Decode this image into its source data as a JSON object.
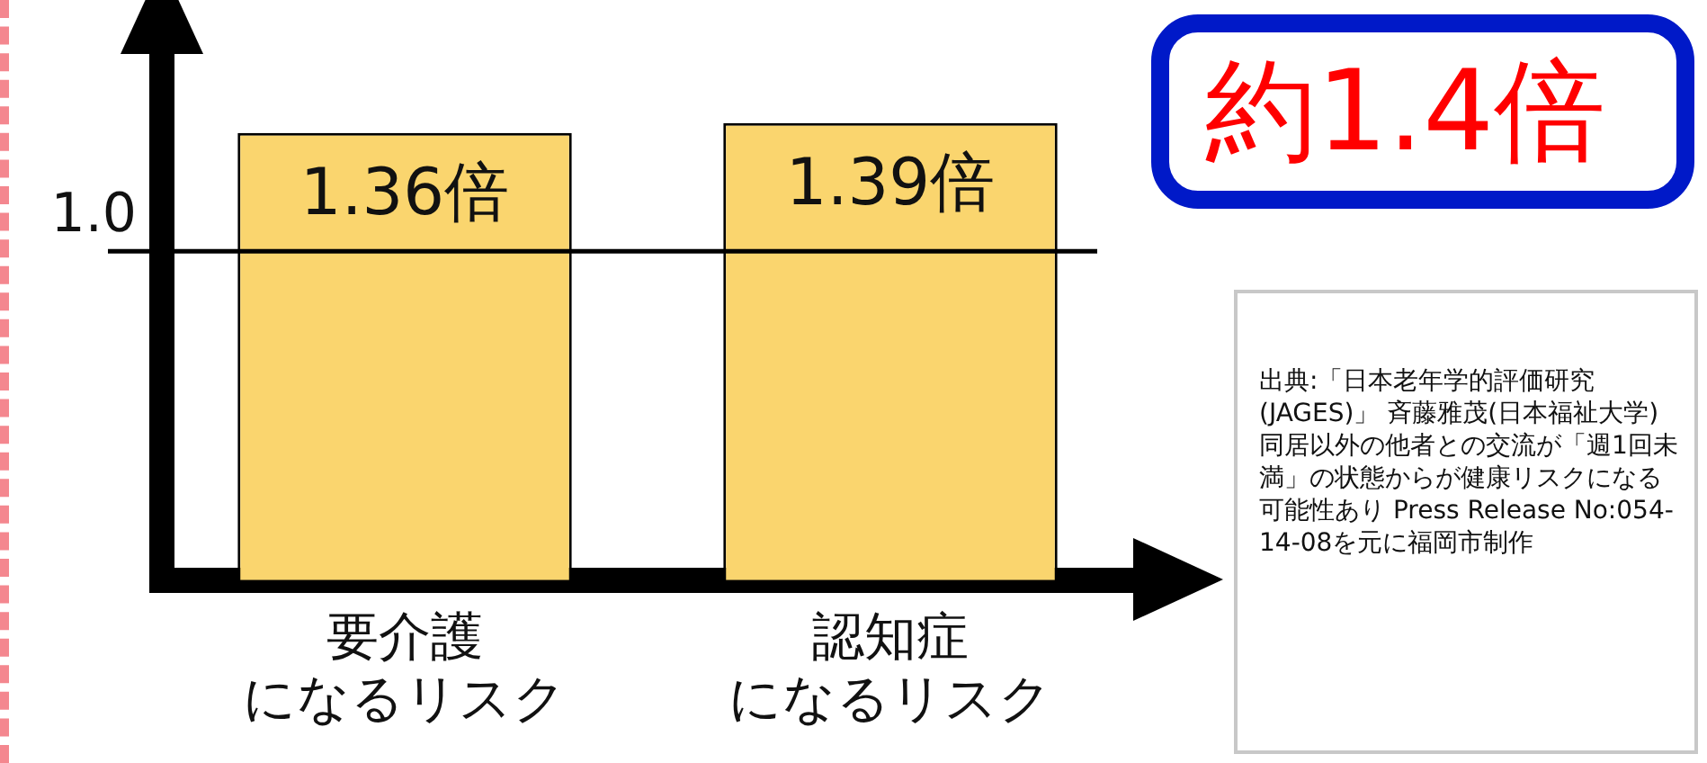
{
  "chart_data": {
    "type": "bar",
    "categories": [
      "要介護になるリスク",
      "認知症になるリスク"
    ],
    "values": [
      1.36,
      1.39
    ],
    "color": "#fad56e",
    "value_labels": [
      "1.36倍",
      "1.39倍"
    ],
    "ref_lines": [
      {
        "axis": "y",
        "value": 1.0,
        "label": "1.0"
      }
    ],
    "tick_labels": "x",
    "grid": false,
    "legend": false,
    "annotations": [
      "約1.4倍",
      "出典:「日本老年学的評価研究(JAGES)」 斉藤雅茂(日本福祉大学)同居以外の他者との交流が「週1回未満」の状態からが健康リスクになる可能性あり Press Release No:054-14-08を元に福岡市制作"
    ]
  }
}
